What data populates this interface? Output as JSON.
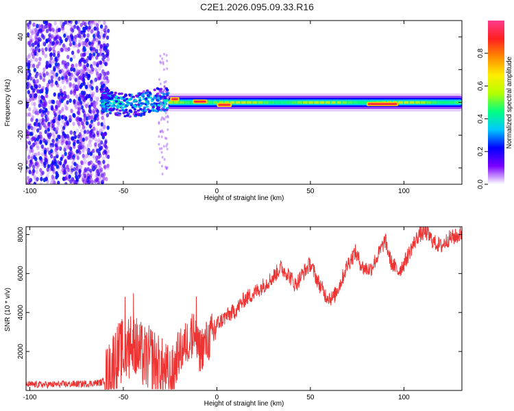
{
  "figure": {
    "title": "C2E1.2026.095.09.33.R16"
  },
  "chart_data": [
    {
      "type": "heatmap",
      "xlabel": "Height of straight line (km)",
      "ylabel": "Frequency (Hz)",
      "xlim": [
        -102,
        131
      ],
      "ylim": [
        -50,
        50
      ],
      "xticks": [
        -100,
        -50,
        0,
        50,
        100
      ],
      "yticks": [
        -40,
        -20,
        0,
        20,
        40
      ],
      "grid": false,
      "colorbar": {
        "label": "Normalized spectral amplitude",
        "range": [
          0,
          1
        ],
        "ticks": [
          0.0,
          0.2,
          0.4,
          0.6,
          0.8
        ],
        "colormap": [
          "#ffffff",
          "#7b00ff",
          "#0000ff",
          "#00c8ff",
          "#00ff80",
          "#b4ff00",
          "#ffee00",
          "#ff8a00",
          "#ff2020",
          "#ff3c8c"
        ]
      },
      "regions": [
        {
          "x_range": [
            -102,
            -58
          ],
          "freq_range": [
            -50,
            50
          ],
          "amplitude": [
            0.0,
            0.2
          ],
          "pattern": "scattered noise"
        },
        {
          "x_range": [
            -62,
            -26
          ],
          "freq_center": 0,
          "freq_halfwidth": 4,
          "amplitude": [
            0.2,
            0.45
          ],
          "pattern": "noisy band"
        },
        {
          "x_range": [
            -31,
            -26
          ],
          "freq_range": [
            -45,
            30
          ],
          "amplitude": [
            0.0,
            0.1
          ],
          "pattern": "vertical speckle"
        },
        {
          "x_range": [
            -26,
            131
          ],
          "freq_center": 0,
          "freq_halfwidth": 2.5,
          "amplitude": [
            0.3,
            0.9
          ],
          "pattern": "narrow band"
        }
      ],
      "peaks": [
        {
          "x_range": [
            -25,
            -20
          ],
          "freq": 2,
          "amplitude": 0.92
        },
        {
          "x_range": [
            -13,
            -5
          ],
          "freq": 0.5,
          "amplitude": 0.92
        },
        {
          "x_range": [
            0,
            8
          ],
          "freq": -1.5,
          "amplitude": 0.92
        },
        {
          "x_range": [
            80,
            97
          ],
          "freq": -1,
          "amplitude": 0.92
        }
      ]
    },
    {
      "type": "line",
      "xlabel": "Height of straight line (km)",
      "ylabel": "SNR (10 * v/v)",
      "xlim": [
        -102,
        131
      ],
      "ylim": [
        0,
        8400
      ],
      "xticks": [
        -100,
        -50,
        0,
        50,
        100
      ],
      "yticks": [
        2000,
        4000,
        6000,
        8000
      ],
      "grid": false,
      "series": [
        {
          "color": "#ee3333",
          "x": [
            -102,
            -90,
            -80,
            -70,
            -62,
            -58,
            -55,
            -52,
            -48,
            -45,
            -42,
            -38,
            -35,
            -32,
            -28,
            -24,
            -21,
            -18,
            -15,
            -12,
            -10,
            -6,
            -2,
            0,
            5,
            10,
            15,
            20,
            25,
            30,
            34,
            38,
            42,
            46,
            50,
            54,
            58,
            62,
            66,
            70,
            74,
            78,
            82,
            86,
            90,
            93,
            97,
            100,
            104,
            108,
            112,
            116,
            120,
            124,
            128,
            131
          ],
          "y": [
            300,
            300,
            320,
            340,
            400,
            700,
            1600,
            1900,
            2200,
            2400,
            2000,
            1600,
            1700,
            1300,
            900,
            500,
            1800,
            2200,
            2600,
            3000,
            2000,
            2400,
            2900,
            3400,
            3800,
            4100,
            4700,
            5000,
            5400,
            5800,
            6300,
            6000,
            5400,
            6000,
            6500,
            5600,
            4900,
            4700,
            5500,
            6500,
            7100,
            6300,
            6200,
            6900,
            7700,
            6600,
            6100,
            6500,
            7300,
            8000,
            8100,
            7600,
            7400,
            7800,
            7900,
            8050
          ]
        }
      ]
    }
  ]
}
